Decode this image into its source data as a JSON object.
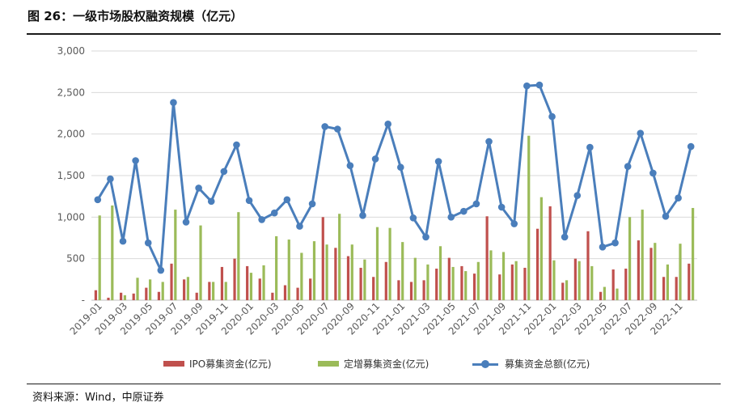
{
  "figure": {
    "title": "图 26：一级市场股权融资规模（亿元）",
    "source": "资料来源：Wind，中原证券"
  },
  "colors": {
    "ipo": "#c0504d",
    "placement": "#9bbb59",
    "total": "#4a7ebb",
    "grid": "#d9d9d9",
    "axis_text": "#595959"
  },
  "chart_data": {
    "type": "bar",
    "combo": "bar+line",
    "title": "一级市场股权融资规模（亿元）",
    "ylim": [
      0,
      3000
    ],
    "yticks": [
      0,
      500,
      1000,
      1500,
      2000,
      2500,
      3000
    ],
    "ytick_labels": [
      "-",
      "500",
      "1,000",
      "1,500",
      "2,000",
      "2,500",
      "3,000"
    ],
    "grid": true,
    "legend": "bottom",
    "categories": [
      "2019-01",
      "2019-02",
      "2019-03",
      "2019-04",
      "2019-05",
      "2019-06",
      "2019-07",
      "2019-08",
      "2019-09",
      "2019-10",
      "2019-11",
      "2019-12",
      "2020-01",
      "2020-02",
      "2020-03",
      "2020-04",
      "2020-05",
      "2020-06",
      "2020-07",
      "2020-08",
      "2020-09",
      "2020-10",
      "2020-11",
      "2020-12",
      "2021-01",
      "2021-02",
      "2021-03",
      "2021-04",
      "2021-05",
      "2021-06",
      "2021-07",
      "2021-08",
      "2021-09",
      "2021-10",
      "2021-11",
      "2021-12",
      "2022-01",
      "2022-02",
      "2022-03",
      "2022-04",
      "2022-05",
      "2022-06",
      "2022-07",
      "2022-08",
      "2022-09",
      "2022-10",
      "2022-11",
      "2022-12"
    ],
    "xtick_labels": [
      "2019-01",
      "2019-03",
      "2019-05",
      "2019-07",
      "2019-09",
      "2019-11",
      "2020-01",
      "2020-03",
      "2020-05",
      "2020-07",
      "2020-09",
      "2020-11",
      "2021-01",
      "2021-03",
      "2021-05",
      "2021-07",
      "2021-09",
      "2021-11",
      "2022-01",
      "2022-03",
      "2022-05",
      "2022-07",
      "2022-09",
      "2022-11"
    ],
    "series": [
      {
        "name": "IPO募集资金(亿元)",
        "kind": "bar",
        "values": [
          120,
          30,
          90,
          80,
          150,
          100,
          440,
          250,
          90,
          220,
          400,
          500,
          410,
          260,
          90,
          180,
          150,
          260,
          1000,
          630,
          530,
          390,
          280,
          460,
          240,
          220,
          240,
          380,
          510,
          410,
          320,
          1010,
          310,
          430,
          390,
          860,
          1130,
          210,
          500,
          830,
          100,
          370,
          380,
          720,
          630,
          280,
          280,
          440
        ]
      },
      {
        "name": "定增募集资金(亿元)",
        "kind": "bar",
        "values": [
          1020,
          1140,
          60,
          270,
          250,
          220,
          1090,
          280,
          900,
          220,
          220,
          1060,
          330,
          420,
          770,
          730,
          570,
          710,
          670,
          1040,
          670,
          490,
          880,
          870,
          700,
          510,
          430,
          650,
          400,
          350,
          460,
          600,
          580,
          470,
          1980,
          1240,
          480,
          240,
          470,
          410,
          160,
          140,
          1000,
          1090,
          690,
          430,
          680,
          1110
        ]
      },
      {
        "name": "募集资金总额(亿元)",
        "kind": "line",
        "values": [
          1210,
          1460,
          710,
          1680,
          690,
          360,
          2380,
          940,
          1350,
          1190,
          1550,
          1870,
          1200,
          970,
          1050,
          1210,
          890,
          1160,
          2090,
          2060,
          1620,
          1020,
          1700,
          2120,
          1600,
          990,
          760,
          1670,
          1000,
          1070,
          1160,
          1910,
          1120,
          920,
          2580,
          2590,
          2210,
          760,
          1260,
          1840,
          640,
          690,
          1610,
          2010,
          1530,
          1010,
          1230,
          1850
        ]
      }
    ]
  }
}
